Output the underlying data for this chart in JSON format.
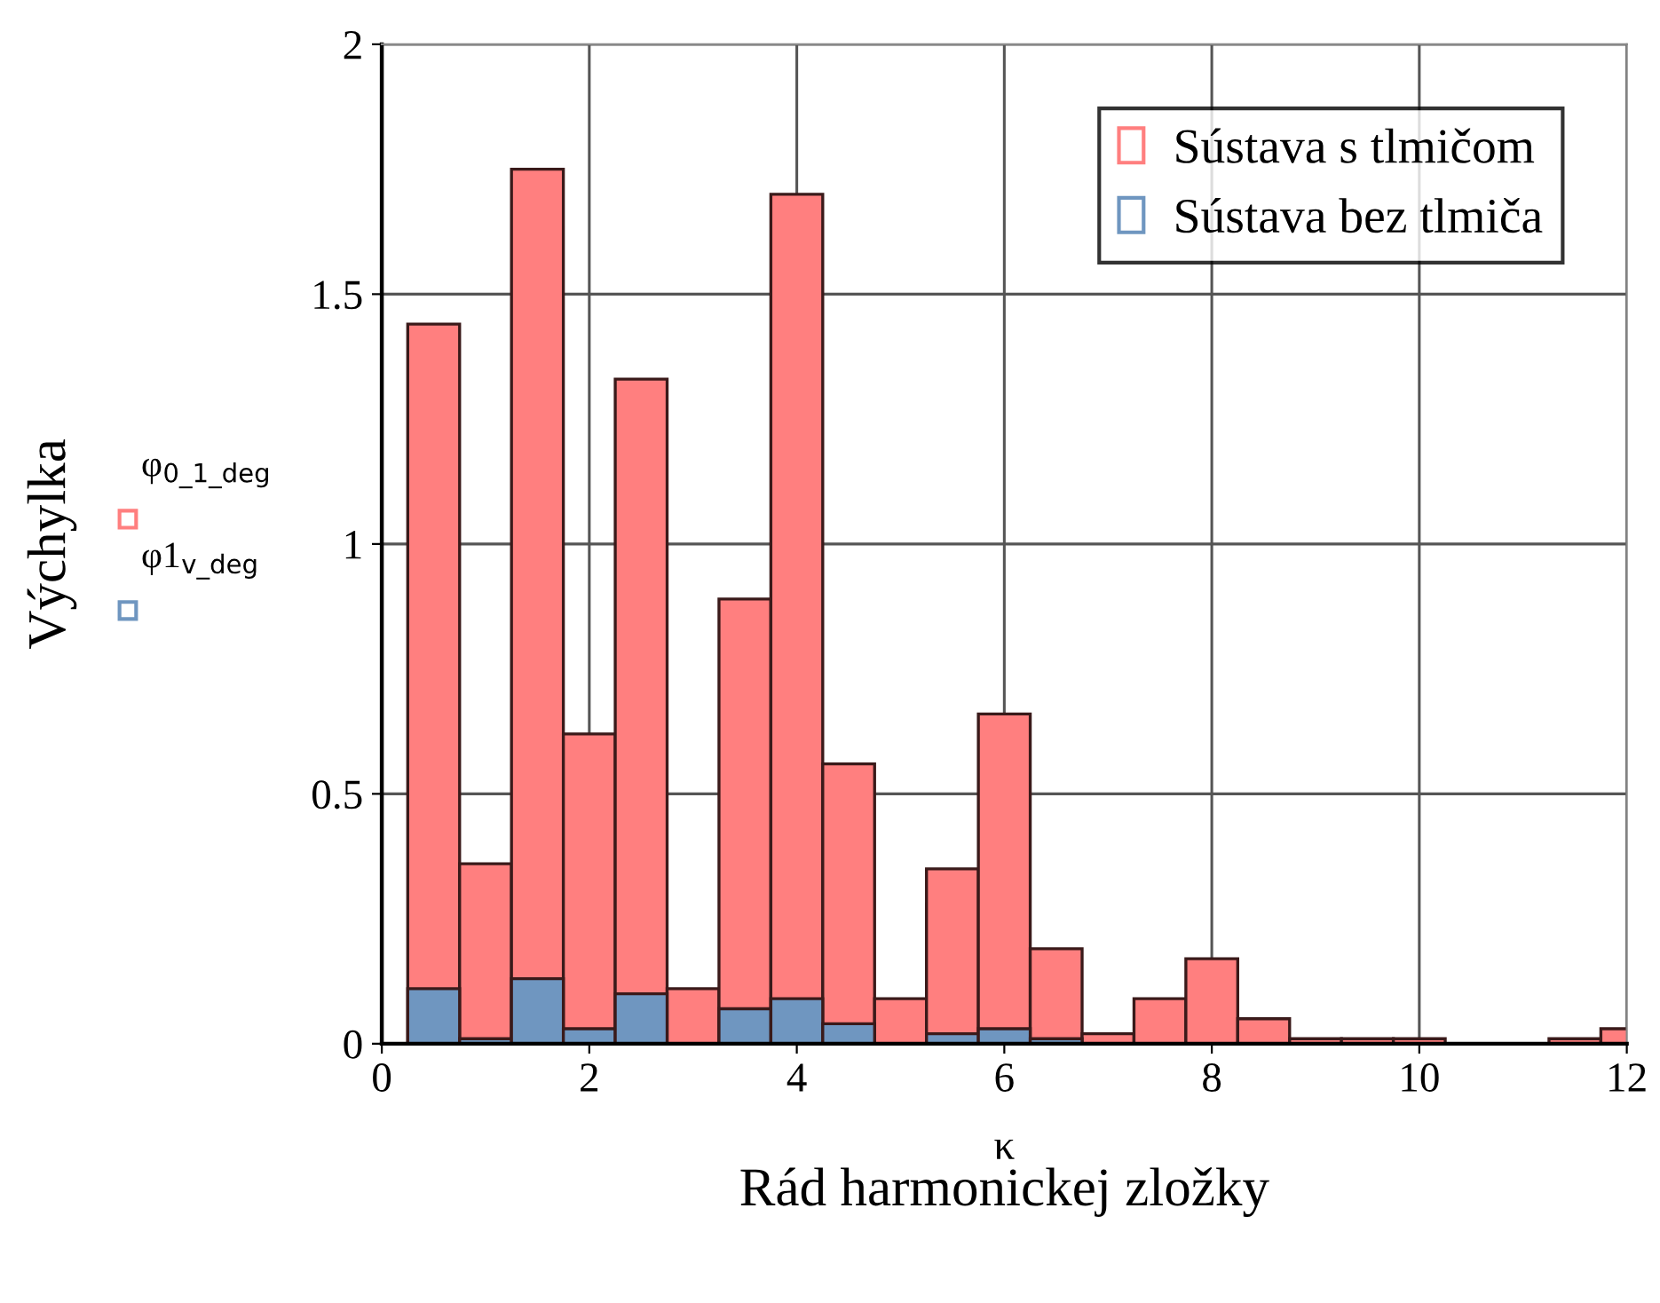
{
  "chart_data": {
    "type": "bar",
    "xlabel": "κ",
    "ylabel": "Výchylka",
    "annotations": [
      "Rád harmonickej zložky",
      "φ$_{0_1_deg}$",
      "φ1$_{v_deg}$"
    ],
    "x": [
      0.5,
      1,
      1.5,
      2,
      2.5,
      3,
      3.5,
      4,
      4.5,
      5,
      5.5,
      6,
      6.5,
      7,
      7.5,
      8,
      8.5,
      9,
      9.5,
      10,
      10.5,
      11,
      11.5,
      12
    ],
    "series": [
      {
        "name": "Sústava s tlmičom",
        "color": "#ff7f7f",
        "values": [
          1.44,
          0.36,
          1.75,
          0.62,
          1.33,
          0.11,
          0.89,
          1.7,
          0.56,
          0.09,
          0.35,
          0.66,
          0.19,
          0.02,
          0.09,
          0.17,
          0.05,
          0.01,
          0.01,
          0.01,
          0,
          0,
          0.01,
          0.03
        ]
      },
      {
        "name": "Sústava bez tlmiča",
        "color": "#6f96c0",
        "values": [
          0.11,
          0.01,
          0.13,
          0.03,
          0.1,
          0,
          0.07,
          0.09,
          0.04,
          0,
          0.02,
          0.03,
          0.01,
          0,
          0,
          0,
          0,
          0,
          0,
          0,
          0,
          0,
          0,
          0
        ]
      }
    ],
    "xlim": [
      0,
      12
    ],
    "xticks": [
      0,
      2,
      4,
      6,
      8,
      10,
      12
    ],
    "ylim": [
      0,
      2
    ],
    "yticks": [
      0,
      0.5,
      1,
      1.5,
      2
    ],
    "grid": true,
    "legend": "top right"
  }
}
